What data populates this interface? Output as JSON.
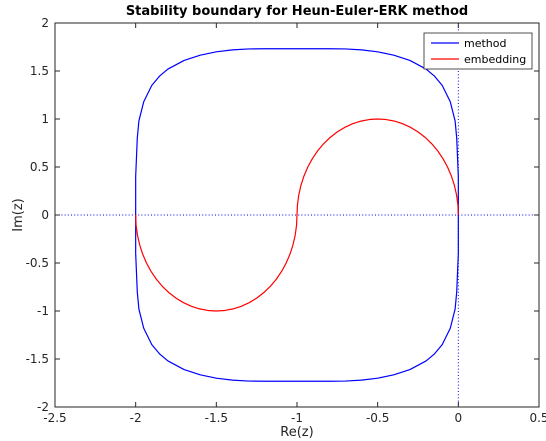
{
  "chart_data": {
    "type": "line",
    "title": "Stability boundary for Heun-Euler-ERK method",
    "xlabel": "Re(z)",
    "ylabel": "Im(z)",
    "xlim": [
      -2.5,
      0.5
    ],
    "ylim": [
      -2,
      2
    ],
    "xticks": [
      -2.5,
      -2,
      -1.5,
      -1,
      -0.5,
      0,
      0.5
    ],
    "yticks": [
      -2,
      -1.5,
      -1,
      -0.5,
      0,
      0.5,
      1,
      1.5,
      2
    ],
    "xtick_labels": [
      "-2.5",
      "-2",
      "-1.5",
      "-1",
      "-0.5",
      "0",
      "0.5"
    ],
    "ytick_labels": [
      "-2",
      "-1.5",
      "-1",
      "-0.5",
      "0",
      "0.5",
      "1",
      "1.5",
      "2"
    ],
    "grid": false,
    "legend_position": "top-right",
    "reference_lines": [
      {
        "orientation": "horizontal",
        "value": 0,
        "style": "dotted",
        "color": "#0000ff"
      },
      {
        "orientation": "vertical",
        "value": 0,
        "style": "dotted",
        "color": "#0000ff"
      }
    ],
    "series": [
      {
        "name": "method",
        "color": "#0000ff",
        "x": [
          0,
          0,
          -0.01,
          -0.02,
          -0.05,
          -0.1,
          -0.15,
          -0.2,
          -0.3,
          -0.4,
          -0.5,
          -0.6,
          -0.7,
          -0.8,
          -0.9,
          -1,
          -1.1,
          -1.2,
          -1.3,
          -1.4,
          -1.5,
          -1.6,
          -1.7,
          -1.8,
          -1.85,
          -1.9,
          -1.95,
          -1.98,
          -1.99,
          -2,
          -2,
          -2,
          -1.99,
          -1.98,
          -1.95,
          -1.9,
          -1.85,
          -1.8,
          -1.7,
          -1.6,
          -1.5,
          -1.4,
          -1.3,
          -1.2,
          -1.1,
          -1,
          -0.9,
          -0.8,
          -0.7,
          -0.6,
          -0.5,
          -0.4,
          -0.3,
          -0.2,
          -0.15,
          -0.1,
          -0.05,
          -0.02,
          -0.01,
          0,
          0,
          0
        ],
        "y": [
          0,
          0.4,
          0.8,
          0.98,
          1.18,
          1.35,
          1.45,
          1.52,
          1.61,
          1.665,
          1.7,
          1.72,
          1.73,
          1.732,
          1.732,
          1.732,
          1.732,
          1.732,
          1.73,
          1.72,
          1.7,
          1.665,
          1.61,
          1.52,
          1.45,
          1.35,
          1.18,
          0.98,
          0.8,
          0.4,
          0,
          -0.4,
          -0.8,
          -0.98,
          -1.18,
          -1.35,
          -1.45,
          -1.52,
          -1.61,
          -1.665,
          -1.7,
          -1.72,
          -1.73,
          -1.732,
          -1.732,
          -1.732,
          -1.732,
          -1.732,
          -1.73,
          -1.72,
          -1.7,
          -1.665,
          -1.61,
          -1.52,
          -1.45,
          -1.35,
          -1.18,
          -0.98,
          -0.8,
          -0.4,
          0,
          0
        ]
      },
      {
        "name": "embedding",
        "color": "#ff0000",
        "x": [
          0,
          -0.0027,
          -0.0109,
          -0.0245,
          -0.0432,
          -0.067,
          -0.0955,
          -0.1284,
          -0.1654,
          -0.2061,
          -0.25,
          -0.2966,
          -0.3455,
          -0.396,
          -0.4477,
          -0.5,
          -0.5523,
          -0.604,
          -0.6545,
          -0.7034,
          -0.75,
          -0.7939,
          -0.8346,
          -0.8716,
          -0.9045,
          -0.933,
          -0.9568,
          -0.9755,
          -0.9891,
          -0.9973,
          -1,
          -1.0027,
          -1.0109,
          -1.0245,
          -1.0432,
          -1.067,
          -1.0955,
          -1.1284,
          -1.1654,
          -1.2061,
          -1.25,
          -1.2966,
          -1.3455,
          -1.396,
          -1.4477,
          -1.5,
          -1.5523,
          -1.604,
          -1.6545,
          -1.7034,
          -1.75,
          -1.7939,
          -1.8346,
          -1.8716,
          -1.9045,
          -1.933,
          -1.9568,
          -1.9755,
          -1.9891,
          -1.9973,
          -2
        ],
        "y": [
          0,
          0.1045,
          0.2079,
          0.309,
          0.4067,
          0.5,
          0.5878,
          0.6691,
          0.7431,
          0.809,
          0.866,
          0.9135,
          0.9511,
          0.9781,
          0.9945,
          1,
          0.9945,
          0.9781,
          0.9511,
          0.9135,
          0.866,
          0.809,
          0.7431,
          0.6691,
          0.5878,
          0.5,
          0.4067,
          0.309,
          0.2079,
          0.1045,
          0,
          -0.1045,
          -0.2079,
          -0.309,
          -0.4067,
          -0.5,
          -0.5878,
          -0.6691,
          -0.7431,
          -0.809,
          -0.866,
          -0.9135,
          -0.9511,
          -0.9781,
          -0.9945,
          -1,
          -0.9945,
          -0.9781,
          -0.9511,
          -0.9135,
          -0.866,
          -0.809,
          -0.7431,
          -0.6691,
          -0.5878,
          -0.5,
          -0.4067,
          -0.309,
          -0.2079,
          -0.1045,
          0
        ]
      }
    ]
  }
}
